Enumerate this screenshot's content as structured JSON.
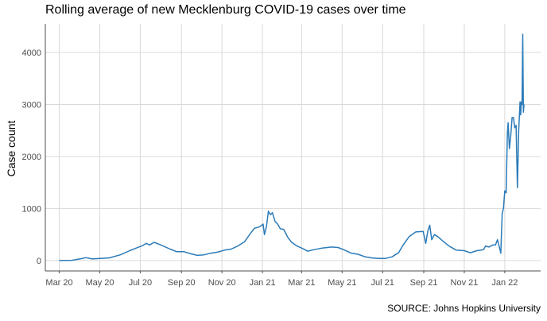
{
  "chart_data": {
    "type": "line",
    "title": "Rolling average of new Mecklenburg COVID-19 cases over time",
    "ylabel": "Case count",
    "xlabel": "",
    "source": "SOURCE: Johns Hopkins University",
    "x_ticks": [
      {
        "label": "Mar 20",
        "date": "2020-03-01"
      },
      {
        "label": "May 20",
        "date": "2020-05-01"
      },
      {
        "label": "Jul 20",
        "date": "2020-07-01"
      },
      {
        "label": "Sep 20",
        "date": "2020-09-01"
      },
      {
        "label": "Nov 20",
        "date": "2020-11-01"
      },
      {
        "label": "Jan 21",
        "date": "2021-01-01"
      },
      {
        "label": "Mar 21",
        "date": "2021-03-01"
      },
      {
        "label": "May 21",
        "date": "2021-05-01"
      },
      {
        "label": "Jul 21",
        "date": "2021-07-01"
      },
      {
        "label": "Sep 21",
        "date": "2021-09-01"
      },
      {
        "label": "Nov 21",
        "date": "2021-11-01"
      },
      {
        "label": "Jan 22",
        "date": "2022-01-01"
      }
    ],
    "y_ticks": [
      0,
      1000,
      2000,
      3000,
      4000
    ],
    "xlim": [
      "2020-02-09",
      "2022-02-24"
    ],
    "ylim": [
      -200,
      4550
    ],
    "grid": true,
    "line_color": "#2b7bb9",
    "series": [
      {
        "points": [
          [
            "2020-03-01",
            0
          ],
          [
            "2020-03-20",
            5
          ],
          [
            "2020-04-01",
            30
          ],
          [
            "2020-04-10",
            55
          ],
          [
            "2020-04-20",
            30
          ],
          [
            "2020-05-01",
            40
          ],
          [
            "2020-05-15",
            50
          ],
          [
            "2020-06-01",
            110
          ],
          [
            "2020-06-15",
            190
          ],
          [
            "2020-06-25",
            240
          ],
          [
            "2020-07-05",
            290
          ],
          [
            "2020-07-10",
            330
          ],
          [
            "2020-07-15",
            300
          ],
          [
            "2020-07-22",
            350
          ],
          [
            "2020-08-01",
            300
          ],
          [
            "2020-08-15",
            220
          ],
          [
            "2020-08-25",
            170
          ],
          [
            "2020-09-05",
            170
          ],
          [
            "2020-09-15",
            130
          ],
          [
            "2020-09-25",
            100
          ],
          [
            "2020-10-05",
            110
          ],
          [
            "2020-10-15",
            140
          ],
          [
            "2020-10-25",
            160
          ],
          [
            "2020-11-05",
            200
          ],
          [
            "2020-11-15",
            220
          ],
          [
            "2020-11-25",
            280
          ],
          [
            "2020-12-05",
            360
          ],
          [
            "2020-12-15",
            540
          ],
          [
            "2020-12-20",
            620
          ],
          [
            "2020-12-28",
            650
          ],
          [
            "2021-01-02",
            700
          ],
          [
            "2021-01-04",
            500
          ],
          [
            "2021-01-07",
            650
          ],
          [
            "2021-01-10",
            950
          ],
          [
            "2021-01-13",
            880
          ],
          [
            "2021-01-16",
            920
          ],
          [
            "2021-01-20",
            750
          ],
          [
            "2021-01-24",
            700
          ],
          [
            "2021-01-28",
            610
          ],
          [
            "2021-02-02",
            600
          ],
          [
            "2021-02-08",
            450
          ],
          [
            "2021-02-14",
            350
          ],
          [
            "2021-02-22",
            280
          ],
          [
            "2021-03-01",
            240
          ],
          [
            "2021-03-10",
            180
          ],
          [
            "2021-03-20",
            210
          ],
          [
            "2021-04-01",
            240
          ],
          [
            "2021-04-15",
            260
          ],
          [
            "2021-04-25",
            250
          ],
          [
            "2021-05-05",
            200
          ],
          [
            "2021-05-15",
            140
          ],
          [
            "2021-05-25",
            120
          ],
          [
            "2021-06-05",
            70
          ],
          [
            "2021-06-15",
            50
          ],
          [
            "2021-06-25",
            40
          ],
          [
            "2021-07-05",
            40
          ],
          [
            "2021-07-15",
            70
          ],
          [
            "2021-07-25",
            150
          ],
          [
            "2021-08-01",
            300
          ],
          [
            "2021-08-10",
            460
          ],
          [
            "2021-08-20",
            550
          ],
          [
            "2021-08-31",
            560
          ],
          [
            "2021-09-04",
            330
          ],
          [
            "2021-09-07",
            560
          ],
          [
            "2021-09-10",
            680
          ],
          [
            "2021-09-13",
            400
          ],
          [
            "2021-09-17",
            500
          ],
          [
            "2021-09-22",
            460
          ],
          [
            "2021-10-01",
            360
          ],
          [
            "2021-10-10",
            270
          ],
          [
            "2021-10-20",
            200
          ],
          [
            "2021-11-01",
            190
          ],
          [
            "2021-11-10",
            150
          ],
          [
            "2021-11-20",
            190
          ],
          [
            "2021-11-30",
            210
          ],
          [
            "2021-12-03",
            280
          ],
          [
            "2021-12-08",
            260
          ],
          [
            "2021-12-14",
            300
          ],
          [
            "2021-12-18",
            300
          ],
          [
            "2021-12-21",
            400
          ],
          [
            "2021-12-24",
            250
          ],
          [
            "2021-12-26",
            140
          ],
          [
            "2021-12-28",
            900
          ],
          [
            "2021-12-30",
            1000
          ],
          [
            "2022-01-01",
            1340
          ],
          [
            "2022-01-03",
            1300
          ],
          [
            "2022-01-05",
            2450
          ],
          [
            "2022-01-06",
            2650
          ],
          [
            "2022-01-08",
            2150
          ],
          [
            "2022-01-10",
            2400
          ],
          [
            "2022-01-12",
            2750
          ],
          [
            "2022-01-14",
            2750
          ],
          [
            "2022-01-16",
            2550
          ],
          [
            "2022-01-18",
            2600
          ],
          [
            "2022-01-20",
            1400
          ],
          [
            "2022-01-22",
            2500
          ],
          [
            "2022-01-24",
            3050
          ],
          [
            "2022-01-25",
            2800
          ],
          [
            "2022-01-26",
            3050
          ],
          [
            "2022-01-27",
            3000
          ],
          [
            "2022-01-28",
            4350
          ],
          [
            "2022-01-29",
            2850
          ],
          [
            "2022-01-30",
            3000
          ]
        ]
      }
    ]
  }
}
